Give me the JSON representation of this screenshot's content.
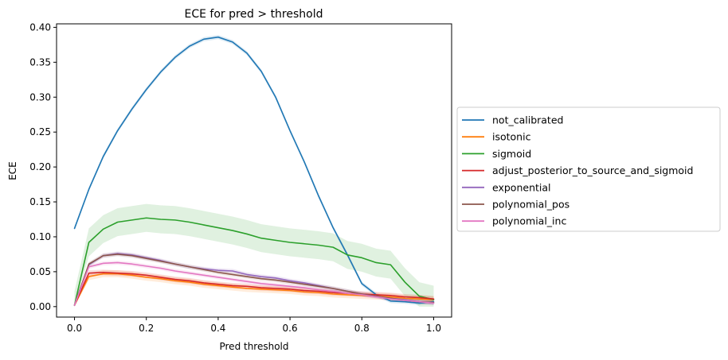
{
  "chart_data": {
    "type": "line",
    "title": "ECE for pred > threshold",
    "xlabel": "Pred threshold",
    "ylabel": "ECE",
    "xlim": [
      -0.05,
      1.05
    ],
    "ylim": [
      -0.015,
      0.405
    ],
    "xticks": [
      0.0,
      0.2,
      0.4,
      0.6,
      0.8,
      1.0
    ],
    "xtick_labels": [
      "0.0",
      "0.2",
      "0.4",
      "0.6",
      "0.8",
      "1.0"
    ],
    "yticks": [
      0.0,
      0.05,
      0.1,
      0.15,
      0.2,
      0.25,
      0.3,
      0.35,
      0.4
    ],
    "ytick_labels": [
      "0.00",
      "0.05",
      "0.10",
      "0.15",
      "0.20",
      "0.25",
      "0.30",
      "0.35",
      "0.40"
    ],
    "grid": false,
    "legend_position": "outside-right",
    "x": [
      0.0,
      0.04,
      0.08,
      0.12,
      0.16,
      0.2,
      0.24,
      0.28,
      0.32,
      0.36,
      0.4,
      0.44,
      0.48,
      0.52,
      0.56,
      0.6,
      0.64,
      0.68,
      0.72,
      0.76,
      0.8,
      0.84,
      0.88,
      0.92,
      0.96,
      1.0
    ],
    "series": [
      {
        "name": "not_calibrated",
        "color": "#1f77b4",
        "values": [
          0.112,
          0.168,
          0.215,
          0.252,
          0.283,
          0.311,
          0.336,
          0.357,
          0.373,
          0.383,
          0.386,
          0.379,
          0.363,
          0.337,
          0.3,
          0.252,
          0.207,
          0.158,
          0.113,
          0.074,
          0.033,
          0.017,
          0.008,
          0.007,
          0.005,
          0.007
        ],
        "band": 0.003
      },
      {
        "name": "isotonic",
        "color": "#ff7f0e",
        "values": [
          0.002,
          0.043,
          0.047,
          0.047,
          0.045,
          0.042,
          0.04,
          0.037,
          0.035,
          0.032,
          0.03,
          0.028,
          0.026,
          0.025,
          0.024,
          0.023,
          0.021,
          0.02,
          0.018,
          0.017,
          0.016,
          0.015,
          0.014,
          0.012,
          0.011,
          0.01
        ],
        "band": 0.005
      },
      {
        "name": "sigmoid",
        "color": "#2ca02c",
        "values": [
          0.002,
          0.092,
          0.111,
          0.121,
          0.124,
          0.127,
          0.125,
          0.124,
          0.121,
          0.117,
          0.113,
          0.109,
          0.104,
          0.098,
          0.095,
          0.092,
          0.09,
          0.088,
          0.085,
          0.074,
          0.07,
          0.063,
          0.06,
          0.035,
          0.015,
          0.01
        ],
        "band": 0.02
      },
      {
        "name": "adjust_posterior_to_source_and_sigmoid",
        "color": "#d62728",
        "values": [
          0.002,
          0.048,
          0.049,
          0.048,
          0.047,
          0.045,
          0.042,
          0.039,
          0.037,
          0.034,
          0.032,
          0.03,
          0.029,
          0.027,
          0.026,
          0.025,
          0.023,
          0.022,
          0.02,
          0.019,
          0.018,
          0.017,
          0.016,
          0.014,
          0.013,
          0.011
        ],
        "band": 0.004
      },
      {
        "name": "exponential",
        "color": "#9467bd",
        "values": [
          0.002,
          0.06,
          0.073,
          0.076,
          0.074,
          0.07,
          0.066,
          0.061,
          0.057,
          0.054,
          0.052,
          0.051,
          0.046,
          0.043,
          0.041,
          0.037,
          0.034,
          0.03,
          0.026,
          0.022,
          0.018,
          0.015,
          0.012,
          0.01,
          0.007,
          0.005
        ],
        "band": 0.003
      },
      {
        "name": "polynomial_pos",
        "color": "#8c564b",
        "values": [
          0.002,
          0.061,
          0.073,
          0.075,
          0.073,
          0.069,
          0.065,
          0.061,
          0.057,
          0.053,
          0.049,
          0.046,
          0.043,
          0.04,
          0.038,
          0.035,
          0.032,
          0.029,
          0.026,
          0.022,
          0.018,
          0.015,
          0.012,
          0.009,
          0.007,
          0.006
        ],
        "band": 0.003
      },
      {
        "name": "polynomial_inc",
        "color": "#e377c2",
        "values": [
          0.002,
          0.057,
          0.062,
          0.063,
          0.061,
          0.058,
          0.055,
          0.051,
          0.048,
          0.045,
          0.042,
          0.039,
          0.036,
          0.033,
          0.031,
          0.029,
          0.027,
          0.024,
          0.022,
          0.019,
          0.017,
          0.014,
          0.011,
          0.009,
          0.007,
          0.005
        ],
        "band": 0.003
      }
    ]
  }
}
